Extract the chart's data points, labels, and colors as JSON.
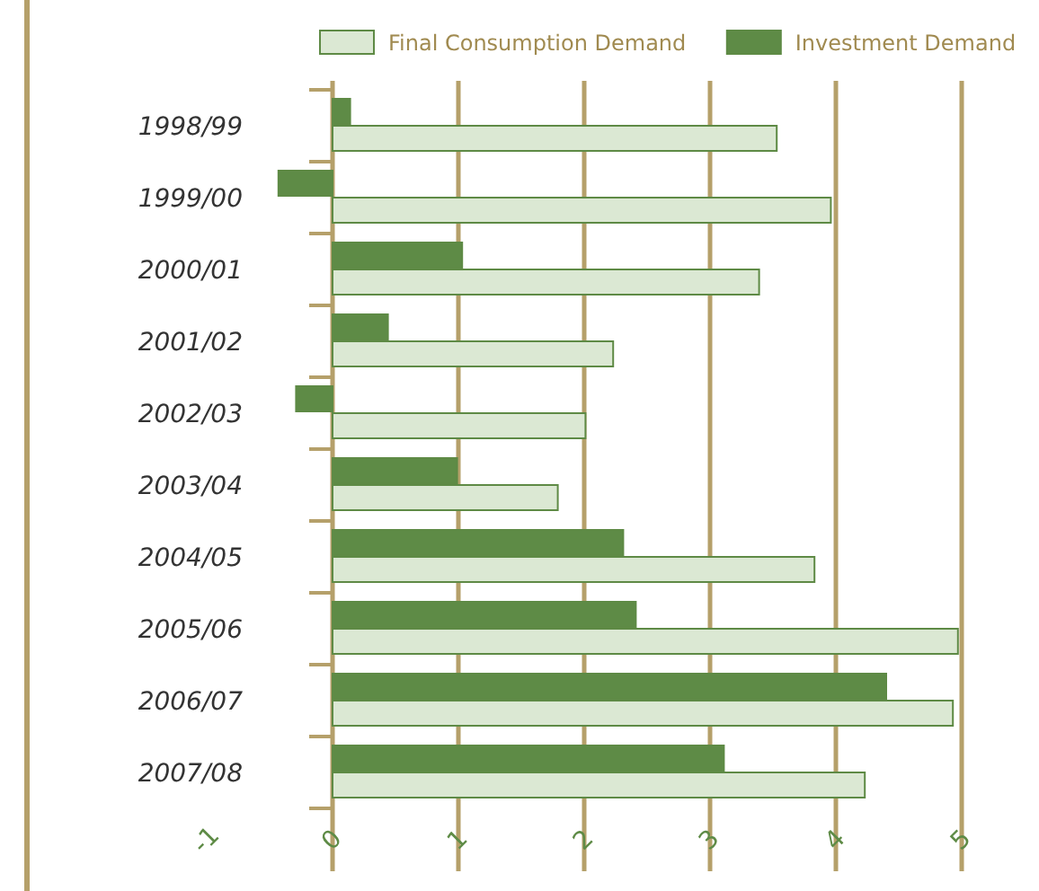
{
  "chart_data": {
    "type": "bar",
    "orientation": "horizontal",
    "categories": [
      "1998/99",
      "1999/00",
      "2000/01",
      "2001/02",
      "2002/03",
      "2003/04",
      "2004/05",
      "2005/06",
      "2006/07",
      "2007/08"
    ],
    "series": [
      {
        "name": "Final Consumption Demand",
        "color": "#dbe8d3",
        "values": [
          3.53,
          3.96,
          3.39,
          2.23,
          2.01,
          1.79,
          3.83,
          4.97,
          4.93,
          4.23
        ]
      },
      {
        "name": "Investment Demand",
        "color": "#5e8b46",
        "values": [
          0.14,
          -0.43,
          1.03,
          0.44,
          -0.29,
          0.99,
          2.31,
          2.41,
          4.4,
          3.11
        ]
      }
    ],
    "xlim": [
      -1,
      5
    ],
    "xticks": [
      -1,
      0,
      1,
      2,
      3,
      4,
      5
    ],
    "grid": "x",
    "legend": "top right"
  }
}
